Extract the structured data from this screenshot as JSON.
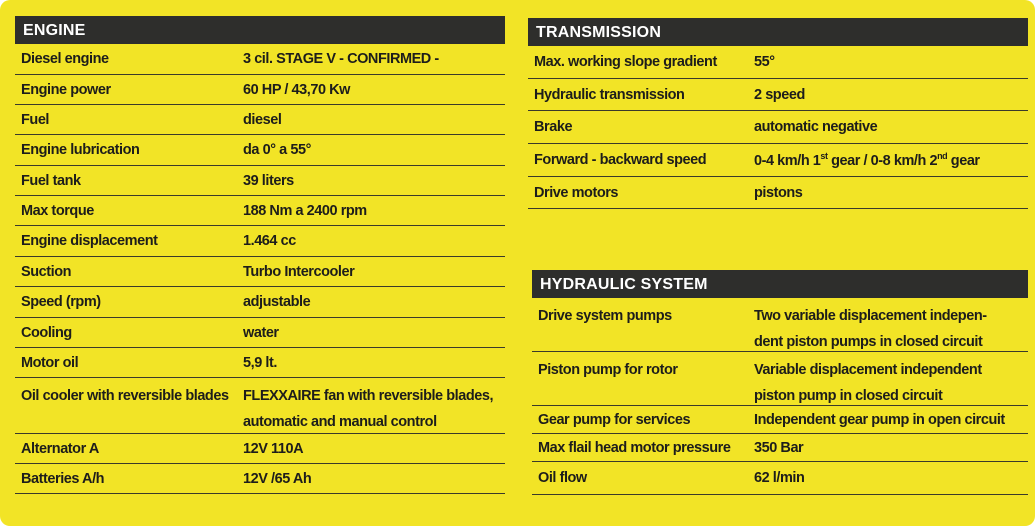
{
  "engine": {
    "title": "ENGINE",
    "rows": [
      [
        "Diesel engine",
        "3 cil. STAGE V - CONFIRMED -"
      ],
      [
        "Engine power",
        "60 HP / 43,70 Kw"
      ],
      [
        "Fuel",
        "diesel"
      ],
      [
        "Engine lubrication",
        "da 0° a 55°"
      ],
      [
        "Fuel tank",
        "39 liters"
      ],
      [
        "Max torque",
        "188 Nm a 2400 rpm"
      ],
      [
        "Engine displacement",
        "1.464 cc"
      ],
      [
        "Suction",
        "Turbo Intercooler"
      ],
      [
        "Speed (rpm)",
        "adjustable"
      ],
      [
        "Cooling",
        "water"
      ],
      [
        "Motor oil",
        "5,9 lt."
      ],
      [
        "Oil cooler with reversible blades",
        [
          "FLEXXAIRE fan with reversible blades,",
          "automatic and manual control"
        ]
      ],
      [
        "Alternator A",
        "12V 110A"
      ],
      [
        "Batteries A/h",
        "12V /65 Ah"
      ]
    ]
  },
  "transmission": {
    "title": "TRANSMISSION",
    "rows": [
      [
        "Max. working slope gradient",
        "55°"
      ],
      [
        "Hydraulic transmission",
        "2 speed"
      ],
      [
        "Brake",
        "automatic negative"
      ],
      [
        "Forward - backward speed",
        {
          "parts": [
            "0-4 km/h 1",
            "st",
            " gear / 0-8 km/h 2",
            "nd",
            " gear"
          ]
        }
      ],
      [
        "Drive motors",
        "pistons"
      ]
    ]
  },
  "hydraulic": {
    "title": "HYDRAULIC SYSTEM",
    "rows": [
      [
        "Drive system pumps",
        [
          "Two variable displacement indepen-",
          "dent piston pumps in closed circuit"
        ]
      ],
      [
        "Piston pump for rotor",
        [
          "Variable displacement independent",
          "piston pump in closed circuit"
        ]
      ],
      [
        "Gear pump for services",
        "Independent gear pump in open circuit"
      ],
      [
        "Max flail head motor pressure",
        "350 Bar"
      ],
      [
        "Oil flow",
        "62 l/min"
      ]
    ]
  }
}
